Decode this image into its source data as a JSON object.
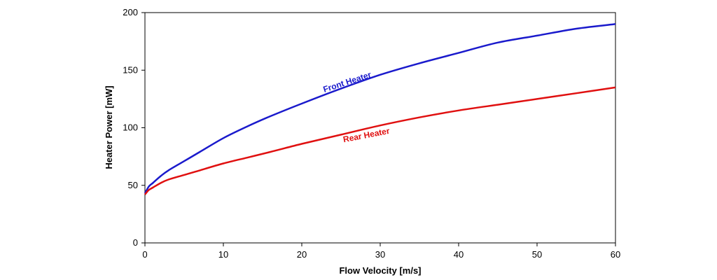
{
  "chart_data": {
    "type": "line",
    "title": "",
    "xlabel": "Flow Velocity [m/s]",
    "ylabel": "Heater Power [mW]",
    "xlim": [
      0,
      60
    ],
    "ylim": [
      0,
      200
    ],
    "xticks": [
      0,
      10,
      20,
      30,
      40,
      50,
      60
    ],
    "yticks": [
      0,
      50,
      100,
      150,
      200
    ],
    "grid": false,
    "legend": "none",
    "series": [
      {
        "name": "Front Heater",
        "color": "#1a1acc",
        "x": [
          0,
          0.5,
          1,
          2,
          3,
          5,
          7,
          10,
          13,
          16,
          20,
          25,
          30,
          35,
          40,
          45,
          50,
          55,
          60
        ],
        "y": [
          43,
          49,
          52,
          58,
          63,
          71,
          79,
          91,
          101,
          110,
          121,
          134,
          146,
          156,
          165,
          174,
          180,
          186,
          190
        ]
      },
      {
        "name": "Rear Heater",
        "color": "#e01010",
        "x": [
          0,
          0.5,
          1,
          2,
          3,
          5,
          7,
          10,
          13,
          16,
          20,
          25,
          30,
          35,
          40,
          45,
          50,
          55,
          60
        ],
        "y": [
          42,
          46,
          48,
          52,
          55,
          59,
          63,
          69,
          74,
          79,
          86,
          94,
          102,
          109,
          115,
          120,
          125,
          130,
          135
        ]
      }
    ]
  }
}
